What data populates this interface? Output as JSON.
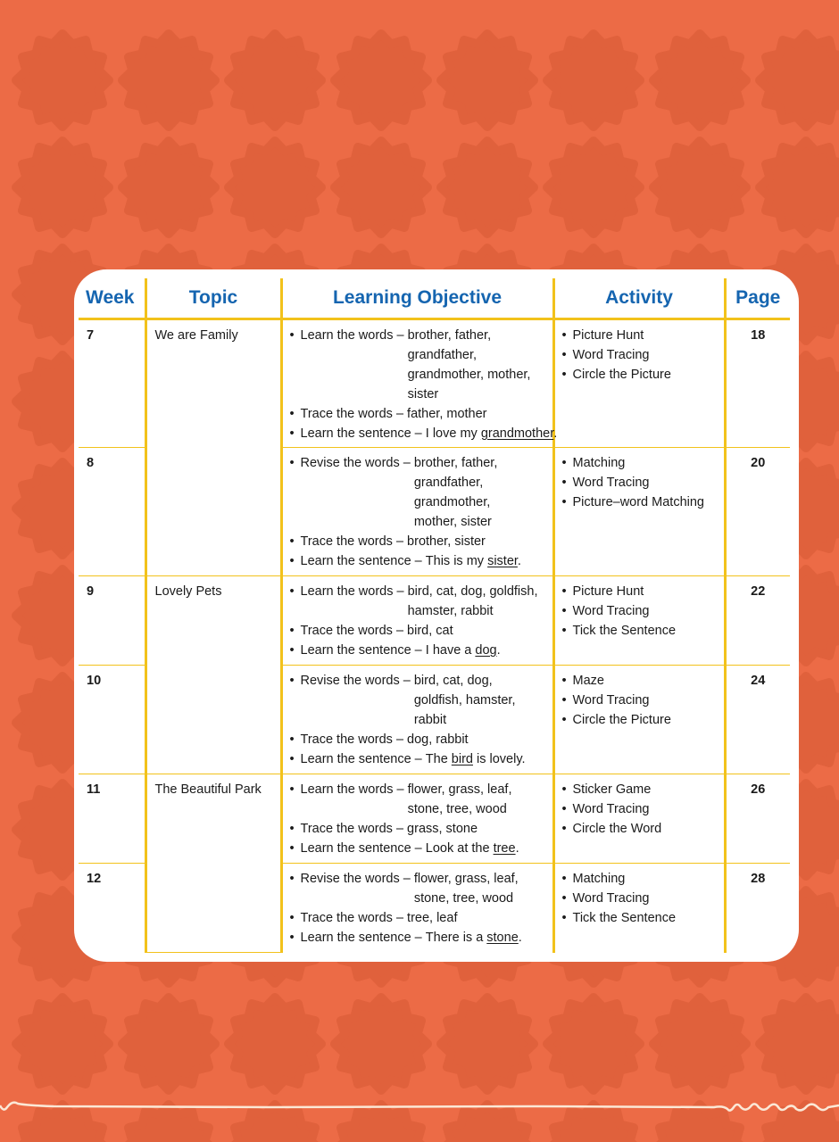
{
  "colors": {
    "background": "#EC6B46",
    "flower": "#E0613C",
    "card": "#FFFFFF",
    "header_text": "#1565B0",
    "grid_lines": "#F2C21B"
  },
  "headers": {
    "week": "Week",
    "topic": "Topic",
    "objective": "Learning Objective",
    "activity": "Activity",
    "page": "Page"
  },
  "groups": [
    {
      "topic": "We are Family",
      "rows": [
        {
          "week": "7",
          "page": "18",
          "activities": [
            "Picture Hunt",
            "Word Tracing",
            "Circle the Picture"
          ],
          "objectives": [
            {
              "verb": "Learn the words",
              "lines": [
                "brother, father,",
                "grandfather,",
                "grandmother, mother,",
                "sister"
              ]
            },
            {
              "verb": "Trace the words",
              "lines": [
                "father, mother"
              ]
            },
            {
              "verb": "Learn the sentence",
              "pre": "I love my ",
              "u": "grandmother",
              "post": "."
            }
          ]
        },
        {
          "week": "8",
          "page": "20",
          "activities": [
            "Matching",
            "Word Tracing",
            "Picture–word Matching"
          ],
          "objectives": [
            {
              "verb": "Revise the words",
              "lines": [
                "brother, father,",
                "grandfather,",
                "grandmother,",
                "mother, sister"
              ]
            },
            {
              "verb": "Trace the words",
              "lines": [
                "brother, sister"
              ]
            },
            {
              "verb": "Learn the sentence",
              "pre": "This is my ",
              "u": "sister",
              "post": "."
            }
          ]
        }
      ]
    },
    {
      "topic": "Lovely Pets",
      "rows": [
        {
          "week": "9",
          "page": "22",
          "activities": [
            "Picture Hunt",
            "Word Tracing",
            "Tick the Sentence"
          ],
          "objectives": [
            {
              "verb": "Learn the words",
              "lines": [
                "bird, cat, dog, goldfish,",
                "hamster, rabbit"
              ]
            },
            {
              "verb": "Trace the words",
              "lines": [
                "bird, cat"
              ]
            },
            {
              "verb": "Learn the sentence",
              "pre": "I have a ",
              "u": "dog",
              "post": "."
            }
          ]
        },
        {
          "week": "10",
          "page": "24",
          "activities": [
            "Maze",
            "Word Tracing",
            "Circle the Picture"
          ],
          "objectives": [
            {
              "verb": "Revise the words",
              "lines": [
                "bird, cat, dog,",
                "goldfish, hamster,",
                "rabbit"
              ]
            },
            {
              "verb": "Trace the words",
              "lines": [
                "dog, rabbit"
              ]
            },
            {
              "verb": "Learn the sentence",
              "pre": "The ",
              "u": "bird",
              "post": " is lovely."
            }
          ]
        }
      ]
    },
    {
      "topic": "The Beautiful Park",
      "rows": [
        {
          "week": "11",
          "page": "26",
          "activities": [
            "Sticker Game",
            "Word Tracing",
            "Circle the Word"
          ],
          "objectives": [
            {
              "verb": "Learn the words",
              "lines": [
                "flower, grass, leaf,",
                "stone, tree, wood"
              ]
            },
            {
              "verb": "Trace the words",
              "lines": [
                "grass, stone"
              ]
            },
            {
              "verb": "Learn the sentence",
              "pre": "Look at the ",
              "u": "tree",
              "post": "."
            }
          ]
        },
        {
          "week": "12",
          "page": "28",
          "activities": [
            "Matching",
            "Word Tracing",
            "Tick the Sentence"
          ],
          "objectives": [
            {
              "verb": "Revise the words",
              "lines": [
                "flower, grass, leaf,",
                "stone, tree, wood"
              ]
            },
            {
              "verb": "Trace the words",
              "lines": [
                "tree, leaf"
              ]
            },
            {
              "verb": "Learn the sentence",
              "pre": "There is a ",
              "u": "stone",
              "post": "."
            }
          ]
        }
      ]
    }
  ]
}
